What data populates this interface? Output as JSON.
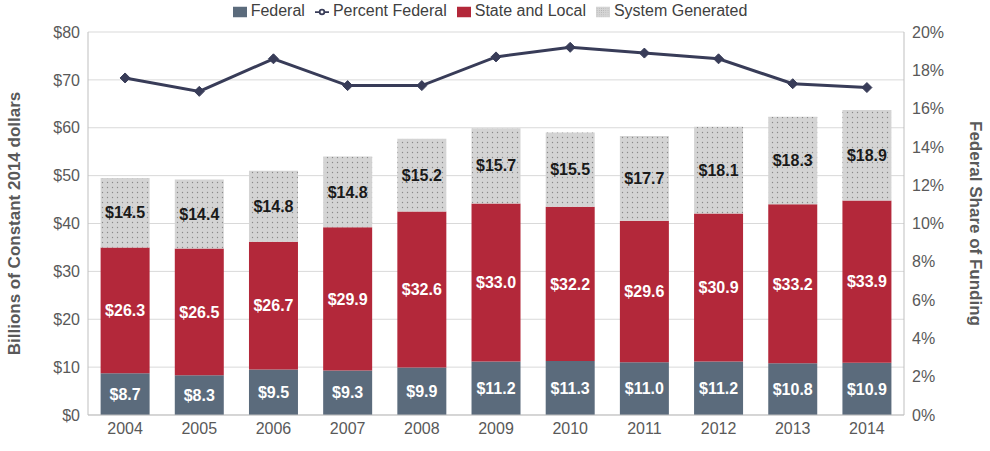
{
  "chart_data": {
    "type": "bar",
    "stacked": true,
    "grid": true,
    "legend": "top",
    "y_label": "Billions of Constant 2014 dollars",
    "y2_label": "Federal Share of Funding",
    "categories": [
      "2004",
      "2005",
      "2006",
      "2007",
      "2008",
      "2009",
      "2010",
      "2011",
      "2012",
      "2013",
      "2014"
    ],
    "ylim": [
      0,
      80
    ],
    "yticks": [
      {
        "value": 0,
        "label": "$0"
      },
      {
        "value": 10,
        "label": "$10"
      },
      {
        "value": 20,
        "label": "$20"
      },
      {
        "value": 30,
        "label": "$30"
      },
      {
        "value": 40,
        "label": "$40"
      },
      {
        "value": 50,
        "label": "$50"
      },
      {
        "value": 60,
        "label": "$60"
      },
      {
        "value": 70,
        "label": "$70"
      },
      {
        "value": 80,
        "label": "$80"
      }
    ],
    "y2lim": [
      0,
      20
    ],
    "y2ticks": [
      {
        "value": 0,
        "label": "0%"
      },
      {
        "value": 2,
        "label": "2%"
      },
      {
        "value": 4,
        "label": "4%"
      },
      {
        "value": 6,
        "label": "6%"
      },
      {
        "value": 8,
        "label": "8%"
      },
      {
        "value": 10,
        "label": "10%"
      },
      {
        "value": 12,
        "label": "12%"
      },
      {
        "value": 14,
        "label": "14%"
      },
      {
        "value": 16,
        "label": "16%"
      },
      {
        "value": 18,
        "label": "18%"
      },
      {
        "value": 20,
        "label": "20%"
      }
    ],
    "series": [
      {
        "name": "Federal",
        "type": "bar",
        "color": "#5b6b7c",
        "data_labels": true,
        "values": [
          8.7,
          8.3,
          9.5,
          9.3,
          9.9,
          11.2,
          11.3,
          11.0,
          11.2,
          10.8,
          10.9
        ],
        "value_labels": [
          "$8.7",
          "$8.3",
          "$9.5",
          "$9.3",
          "$9.9",
          "$11.2",
          "$11.3",
          "$11.0",
          "$11.2",
          "$10.8",
          "$10.9"
        ]
      },
      {
        "name": "State and Local",
        "type": "bar",
        "color": "#b3283a",
        "data_labels": true,
        "values": [
          26.3,
          26.5,
          26.7,
          29.9,
          32.6,
          33.0,
          32.2,
          29.6,
          30.9,
          33.2,
          33.9
        ],
        "value_labels": [
          "$26.3",
          "$26.5",
          "$26.7",
          "$29.9",
          "$32.6",
          "$33.0",
          "$32.2",
          "$29.6",
          "$30.9",
          "$33.2",
          "$33.9"
        ]
      },
      {
        "name": "System Generated",
        "type": "bar",
        "color": "#d4d4d4",
        "data_labels": true,
        "values": [
          14.5,
          14.4,
          14.8,
          14.8,
          15.2,
          15.7,
          15.5,
          17.7,
          18.1,
          18.3,
          18.9
        ],
        "value_labels": [
          "$14.5",
          "$14.4",
          "$14.8",
          "$14.8",
          "$15.2",
          "$15.7",
          "$15.5",
          "$17.7",
          "$18.1",
          "$18.3",
          "$18.9"
        ]
      },
      {
        "name": "Percent Federal",
        "type": "line",
        "axis": "y2",
        "color": "#383c58",
        "marker": "diamond",
        "values": [
          17.6,
          16.9,
          18.6,
          17.2,
          17.2,
          18.7,
          19.2,
          18.9,
          18.6,
          17.3,
          17.1
        ]
      }
    ]
  }
}
